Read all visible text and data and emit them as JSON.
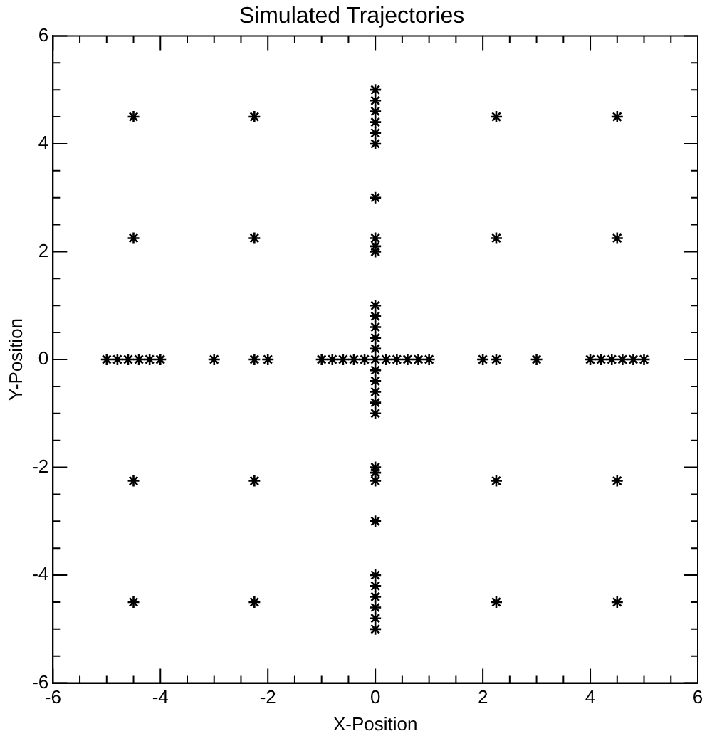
{
  "chart_data": {
    "type": "scatter",
    "title": "Simulated Trajectories",
    "xlabel": "X-Position",
    "ylabel": "Y-Position",
    "series": [
      {
        "color": "#000000",
        "x": [
          -5,
          -4.8,
          -4.6,
          -4.4,
          -4.2,
          -4,
          -3,
          -2.25,
          -2,
          -1,
          -0.8,
          -0.6,
          -0.4,
          -0.2,
          0,
          0.2,
          0.4,
          0.6,
          0.8,
          1,
          2,
          2.25,
          3,
          4,
          4.2,
          4.4,
          4.6,
          4.8,
          5,
          0,
          0,
          0,
          0,
          0,
          0,
          0,
          0,
          0,
          0,
          0,
          0,
          0,
          0,
          0,
          0,
          0,
          0,
          0,
          0,
          0,
          0,
          0,
          0,
          0,
          0,
          0,
          0,
          0,
          0,
          -4.5,
          -2.25,
          2.25,
          4.5,
          -4.5,
          -2.25,
          2.25,
          4.5,
          -4.5,
          -2.25,
          2.25,
          4.5,
          -4.5,
          -2.25,
          2.25,
          4.5
        ],
        "values": [
          0,
          0,
          0,
          0,
          0,
          0,
          0,
          0,
          0,
          0,
          0,
          0,
          0,
          0,
          0,
          0,
          0,
          0,
          0,
          0,
          0,
          0,
          0,
          0,
          0,
          0,
          0,
          0,
          0,
          5,
          4.8,
          4.6,
          4.4,
          4.2,
          4,
          3,
          2.25,
          2.1,
          2,
          1,
          0.8,
          0.6,
          0.4,
          0.2,
          -0.2,
          -0.4,
          -0.6,
          -0.8,
          -1,
          -2,
          -2.1,
          -2.25,
          -3,
          -4,
          -4.2,
          -4.4,
          -4.6,
          -4.8,
          -5,
          4.5,
          4.5,
          4.5,
          4.5,
          2.25,
          2.25,
          2.25,
          2.25,
          -2.25,
          -2.25,
          -2.25,
          -2.25,
          -4.5,
          -4.5,
          -4.5,
          -4.5
        ]
      }
    ],
    "xlim": [
      -6,
      6
    ],
    "ylim": [
      -6,
      6
    ],
    "xticks": [
      -6,
      {
        "value": -5.5,
        "label": null
      },
      {
        "value": -5,
        "label": null
      },
      {
        "value": -4.5,
        "label": null
      },
      -4,
      {
        "value": -3.5,
        "label": null
      },
      {
        "value": -3,
        "label": null
      },
      {
        "value": -2.5,
        "label": null
      },
      -2,
      {
        "value": -1.5,
        "label": null
      },
      {
        "value": -1,
        "label": null
      },
      {
        "value": -0.5,
        "label": null
      },
      0,
      {
        "value": 0.5,
        "label": null
      },
      {
        "value": 1,
        "label": null
      },
      {
        "value": 1.5,
        "label": null
      },
      2,
      {
        "value": 2.5,
        "label": null
      },
      {
        "value": 3,
        "label": null
      },
      {
        "value": 3.5,
        "label": null
      },
      4,
      {
        "value": 4.5,
        "label": null
      },
      {
        "value": 5,
        "label": null
      },
      {
        "value": 5.5,
        "label": null
      },
      6
    ],
    "yticks": [
      -6,
      {
        "value": -5.5,
        "label": null
      },
      {
        "value": -5,
        "label": null
      },
      {
        "value": -4.5,
        "label": null
      },
      -4,
      {
        "value": -3.5,
        "label": null
      },
      {
        "value": -3,
        "label": null
      },
      {
        "value": -2.5,
        "label": null
      },
      -2,
      {
        "value": -1.5,
        "label": null
      },
      {
        "value": -1,
        "label": null
      },
      {
        "value": -0.5,
        "label": null
      },
      0,
      {
        "value": 0.5,
        "label": null
      },
      {
        "value": 1,
        "label": null
      },
      {
        "value": 1.5,
        "label": null
      },
      2,
      {
        "value": 2.5,
        "label": null
      },
      {
        "value": 3,
        "label": null
      },
      {
        "value": 3.5,
        "label": null
      },
      4,
      {
        "value": 4.5,
        "label": null
      },
      {
        "value": 5,
        "label": null
      },
      {
        "value": 5.5,
        "label": null
      },
      6
    ],
    "marker": "cross",
    "grid": false,
    "legend": false
  }
}
